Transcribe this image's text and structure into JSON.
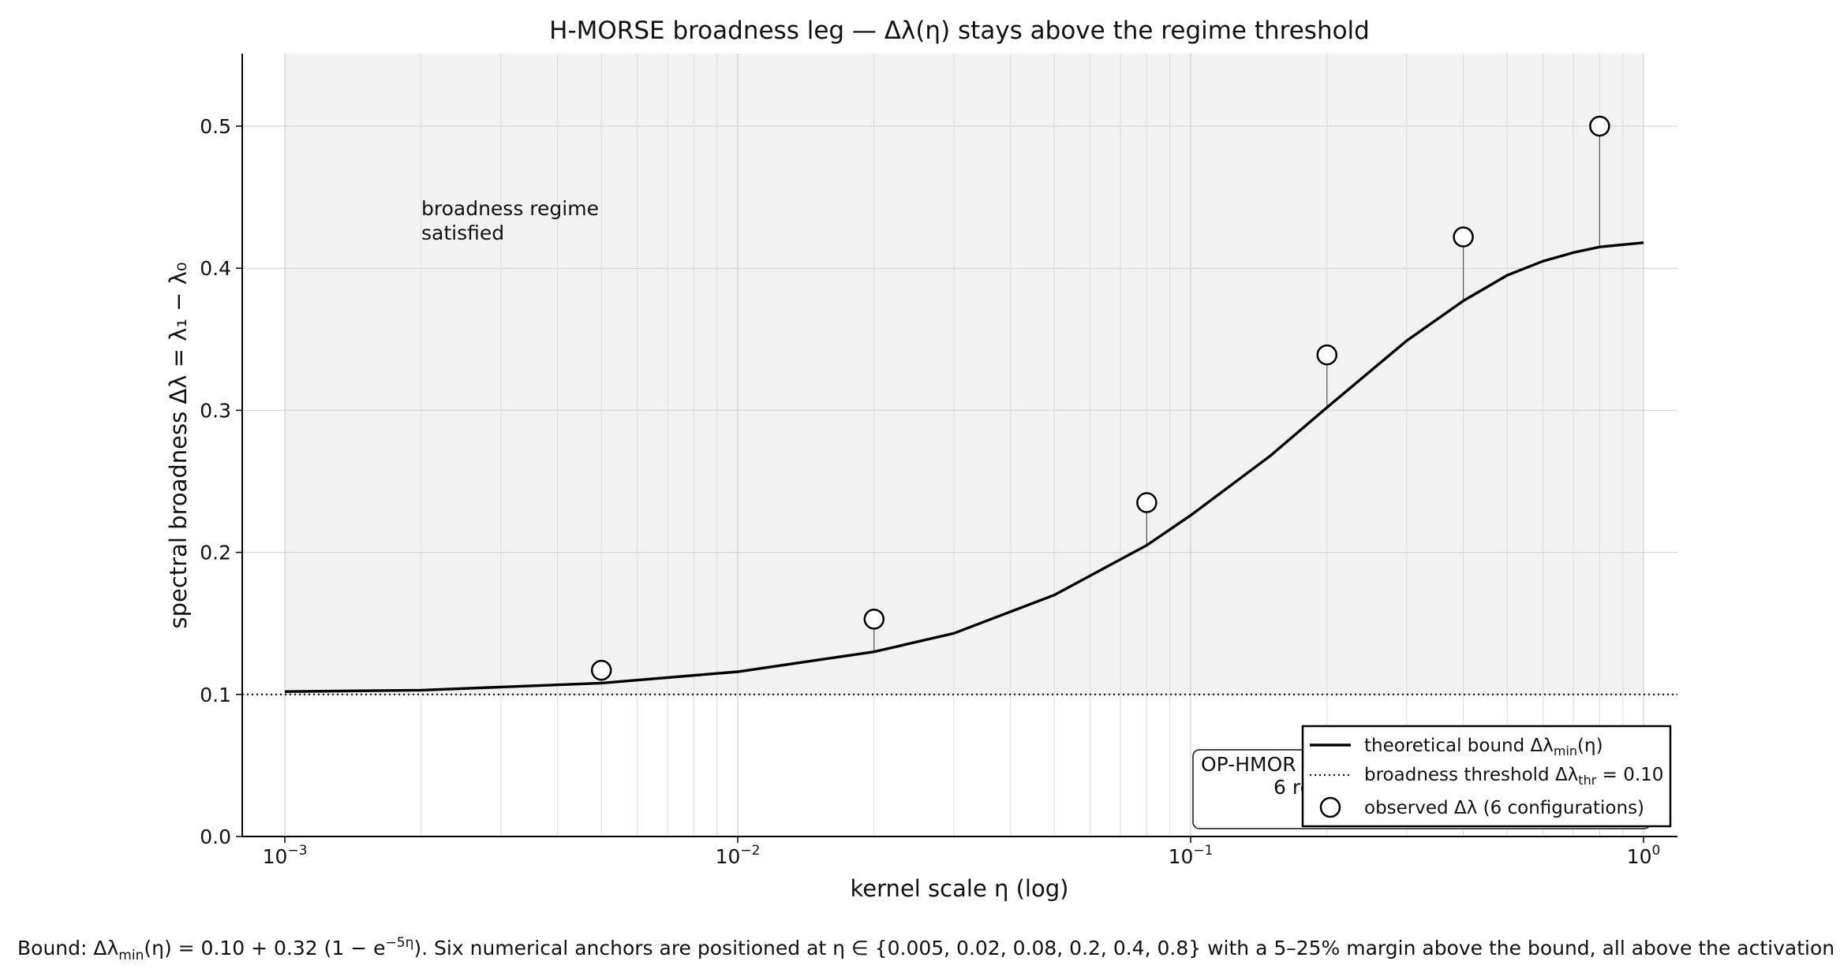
{
  "chart_data": {
    "type": "scatter",
    "title": "H-MORSE broadness leg — Δλ(η) stays above the regime threshold",
    "xlabel": "kernel scale  η  (log)",
    "ylabel": "spectral broadness  Δλ = λ₁ − λ₀",
    "x_scale": "log",
    "xlim": [
      0.001,
      1
    ],
    "ylim": [
      0,
      0.55
    ],
    "y_ticks": [
      0.0,
      0.1,
      0.2,
      0.3,
      0.4,
      0.5
    ],
    "x_tick_labels": [
      {
        "value": 0.001,
        "base": "10",
        "exp": "−3"
      },
      {
        "value": 0.01,
        "base": "10",
        "exp": "−2"
      },
      {
        "value": 0.1,
        "base": "10",
        "exp": "−1"
      },
      {
        "value": 1,
        "base": "10",
        "exp": "0"
      }
    ],
    "grid": true,
    "threshold": 0.1,
    "series": [
      {
        "name": "theoretical bound  Δλmin(η)",
        "kind": "line",
        "style": "solid",
        "x": [
          0.001,
          0.002,
          0.005,
          0.01,
          0.02,
          0.03,
          0.05,
          0.08,
          0.1,
          0.15,
          0.2,
          0.3,
          0.4,
          0.5,
          0.6,
          0.7,
          0.8,
          1.0
        ],
        "y": [
          0.102,
          0.103,
          0.108,
          0.116,
          0.13,
          0.143,
          0.17,
          0.205,
          0.226,
          0.268,
          0.302,
          0.349,
          0.377,
          0.395,
          0.405,
          0.411,
          0.415,
          0.418
        ]
      },
      {
        "name": "broadness threshold  Δλthr = 0.10",
        "kind": "hline",
        "style": "dotted",
        "y": 0.1
      },
      {
        "name": "observed  Δλ  (6 configurations)",
        "kind": "markers",
        "x": [
          0.005,
          0.02,
          0.08,
          0.2,
          0.4,
          0.8
        ],
        "y": [
          0.117,
          0.153,
          0.235,
          0.339,
          0.422,
          0.5
        ]
      }
    ],
    "legend_placement": "lower-right",
    "legend": [
      {
        "text": "theoretical bound  Δλ",
        "sub": "min",
        "tail": "(η)"
      },
      {
        "text": "broadness threshold  Δλ",
        "sub": "thr",
        "tail": " = 0.10"
      },
      {
        "text": "observed  Δλ  (6 configurations)",
        "sub": "",
        "tail": ""
      }
    ],
    "annotations": {
      "regime_line1": "broadness regime",
      "regime_line2": "satisfied",
      "box_line1": "OP-HMOR",
      "box_line2": "6 re"
    }
  },
  "caption": {
    "p1": "Bound: Δλ",
    "sub": "min",
    "p2": "(η) = 0.10 + 0.32 (1 − e",
    "sup": "−5η",
    "p3": "). Six numerical anchors are positioned at η ∈ {0.005, 0.02, 0.08, 0.2, 0.4, 0.8} with a 5–25% margin above the bound, all above the activation threshold."
  }
}
